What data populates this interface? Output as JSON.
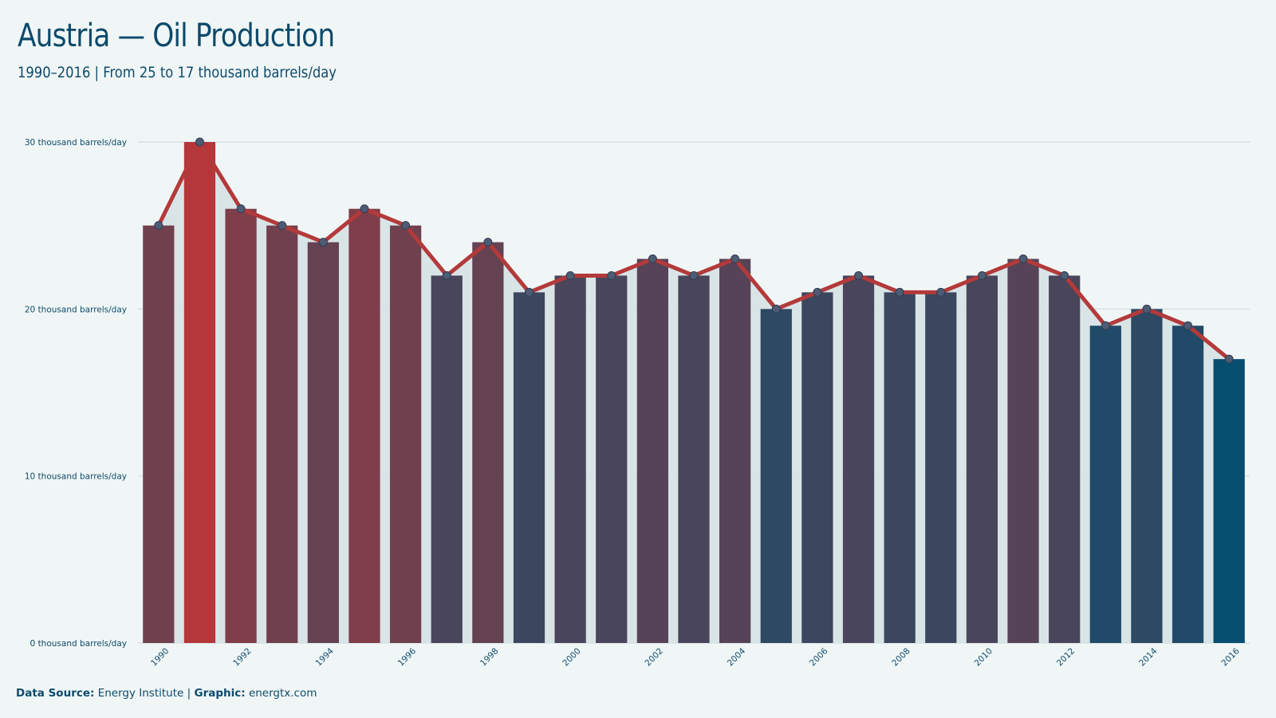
{
  "title": "Austria — Oil Production",
  "subtitle": "1990–2016 | From 25 to 17 thousand barrels/day",
  "footer": {
    "source_label": "Data Source:",
    "source_value": "Energy Institute",
    "separator": "|",
    "graphic_label": "Graphic:",
    "graphic_value": "energtx.com"
  },
  "colors": {
    "background": "#f0f6f6",
    "line": "#b33a3a",
    "high": "#b5373a",
    "low": "#054e6f",
    "area": "#d6e2e5",
    "grid": "#d5e1e3",
    "text": "#0d4a6b"
  },
  "chart_data": {
    "type": "bar",
    "title": "Austria — Oil Production",
    "subtitle": "1990–2016 | From 25 to 17 thousand barrels/day",
    "categories": [
      "1990",
      "1991",
      "1992",
      "1993",
      "1994",
      "1995",
      "1996",
      "1997",
      "1998",
      "1999",
      "2000",
      "2001",
      "2002",
      "2003",
      "2004",
      "2005",
      "2006",
      "2007",
      "2008",
      "2009",
      "2010",
      "2011",
      "2012",
      "2013",
      "2014",
      "2015",
      "2016"
    ],
    "values": [
      25,
      30,
      26,
      25,
      24,
      26,
      25,
      22,
      24,
      21,
      22,
      22,
      23,
      22,
      23,
      20,
      21,
      22,
      21,
      21,
      22,
      23,
      22,
      19,
      20,
      19,
      17
    ],
    "x_tick_labels": [
      "1990",
      "1992",
      "1994",
      "1996",
      "1998",
      "2000",
      "2002",
      "2004",
      "2006",
      "2008",
      "2010",
      "2012",
      "2014",
      "2016"
    ],
    "y_ticks": [
      0,
      10,
      20,
      30
    ],
    "y_tick_labels": [
      "0 thousand barrels/day",
      "10 thousand barrels/day",
      "20 thousand barrels/day",
      "30 thousand barrels/day"
    ],
    "ylim": [
      0,
      30
    ],
    "xlabel": "",
    "ylabel": "",
    "grid": true,
    "overlay": "line with markers and shaded area"
  }
}
